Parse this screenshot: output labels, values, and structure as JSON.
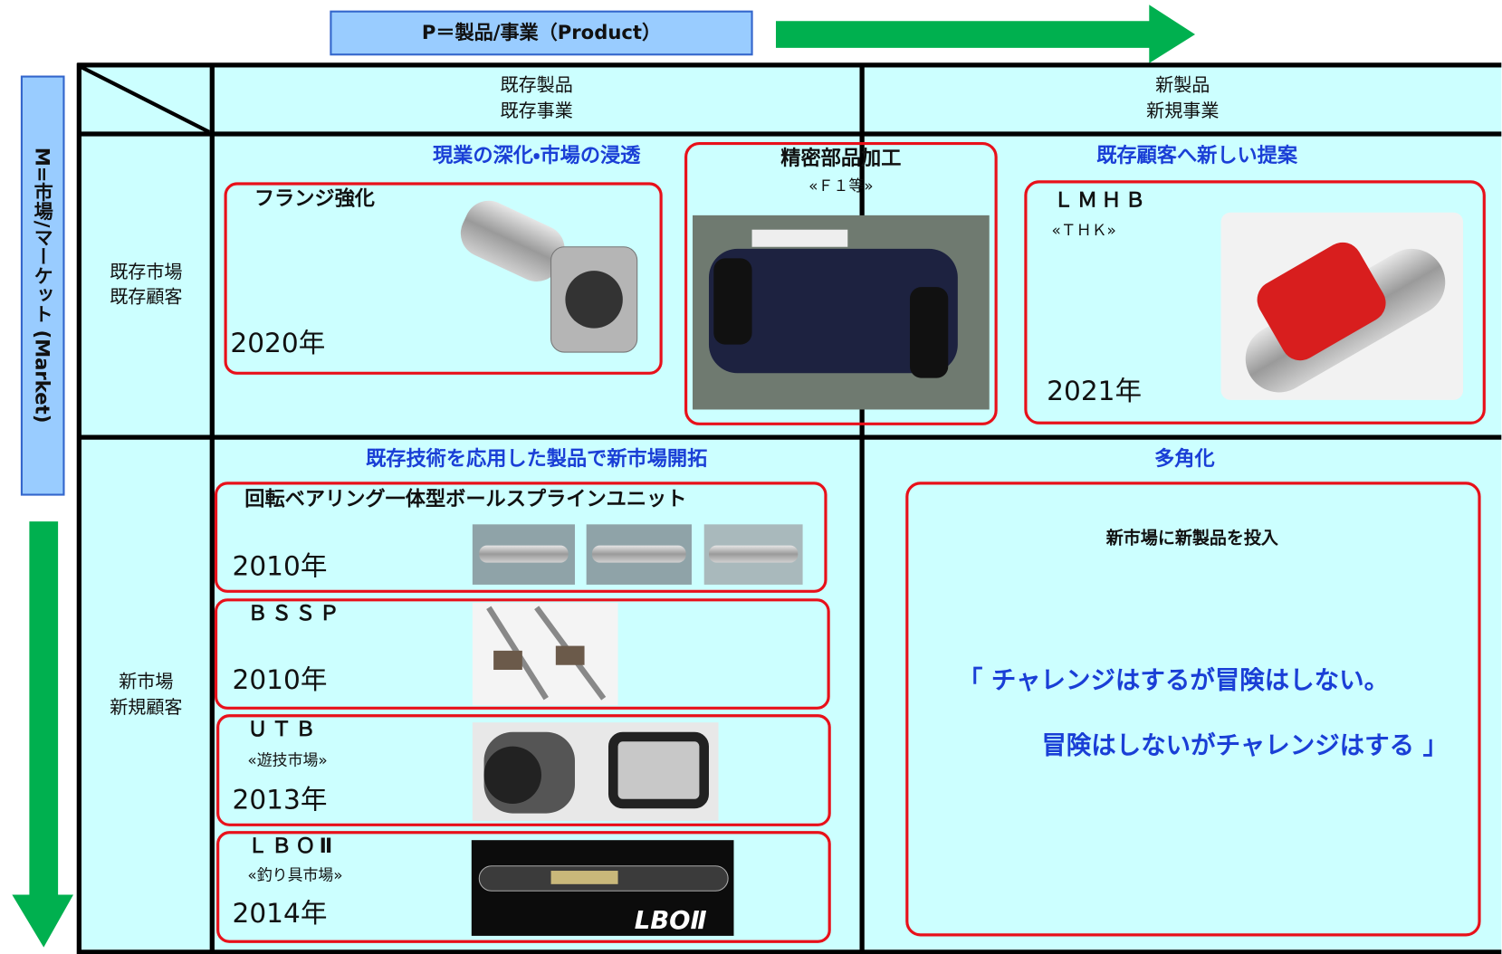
{
  "header": {
    "product_label": "P＝製品/事業（Product）",
    "market_label": "M=市場/マーケット (Market)"
  },
  "columns": [
    {
      "lines": [
        "既存製品",
        "既存事業"
      ]
    },
    {
      "lines": [
        "新製品",
        "新規事業"
      ]
    }
  ],
  "rows": [
    {
      "lines": [
        "既存市場",
        "既存顧客"
      ]
    },
    {
      "lines": [
        "新市場",
        "新規顧客"
      ]
    }
  ],
  "quadrants": [
    {
      "title": "現業の深化・市場の浸透"
    },
    {
      "title": "既存顧客へ新しい提案"
    },
    {
      "title": "既存技術を応用した製品で新市場開拓"
    },
    {
      "title": "多角化"
    }
  ],
  "items": [
    {
      "name": "フランジ強化",
      "year": "2020年"
    },
    {
      "name": "精密部品加工",
      "note": "«Ｆ１等»"
    },
    {
      "name": "ＬＭＨＢ",
      "note": "«ＴＨＫ»",
      "year": "2021年"
    },
    {
      "name": "回転ベアリング一体型ボールスプラインユニット",
      "year": "2010年"
    },
    {
      "name": "ＢＳＳＰ",
      "year": "2010年"
    },
    {
      "name": "ＵＴＢ",
      "note": "«遊技市場»",
      "year": "2013年"
    },
    {
      "name": "ＬＢＯⅡ",
      "note": "«釣り具市場»",
      "year": "2014年"
    }
  ],
  "diversification": {
    "subtitle": "新市場に新製品を投入",
    "slogan": [
      "「 チャレンジはするが冒険はしない。",
      "冒険はしないがチャレンジはする 」"
    ]
  }
}
